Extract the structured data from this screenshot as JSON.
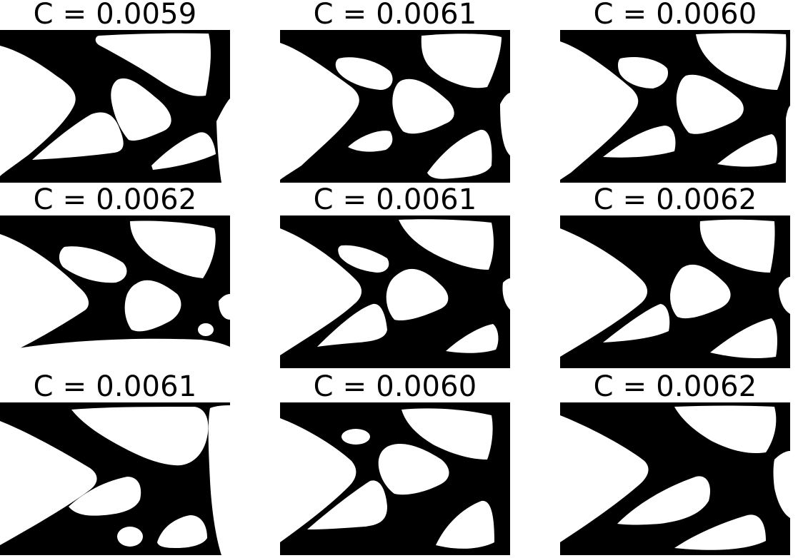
{
  "grid": {
    "rows": 3,
    "cols": 3,
    "panels": [
      {
        "title": "C = 0.0059",
        "compliance": 0.0059
      },
      {
        "title": "C = 0.0061",
        "compliance": 0.0061
      },
      {
        "title": "C = 0.0060",
        "compliance": 0.006
      },
      {
        "title": "C = 0.0062",
        "compliance": 0.0062
      },
      {
        "title": "C = 0.0061",
        "compliance": 0.0061
      },
      {
        "title": "C = 0.0062",
        "compliance": 0.0062
      },
      {
        "title": "C = 0.0061",
        "compliance": 0.0061
      },
      {
        "title": "C = 0.0060",
        "compliance": 0.006
      },
      {
        "title": "C = 0.0062",
        "compliance": 0.0062
      }
    ]
  },
  "colors": {
    "solid": "#000000",
    "void": "#ffffff"
  }
}
